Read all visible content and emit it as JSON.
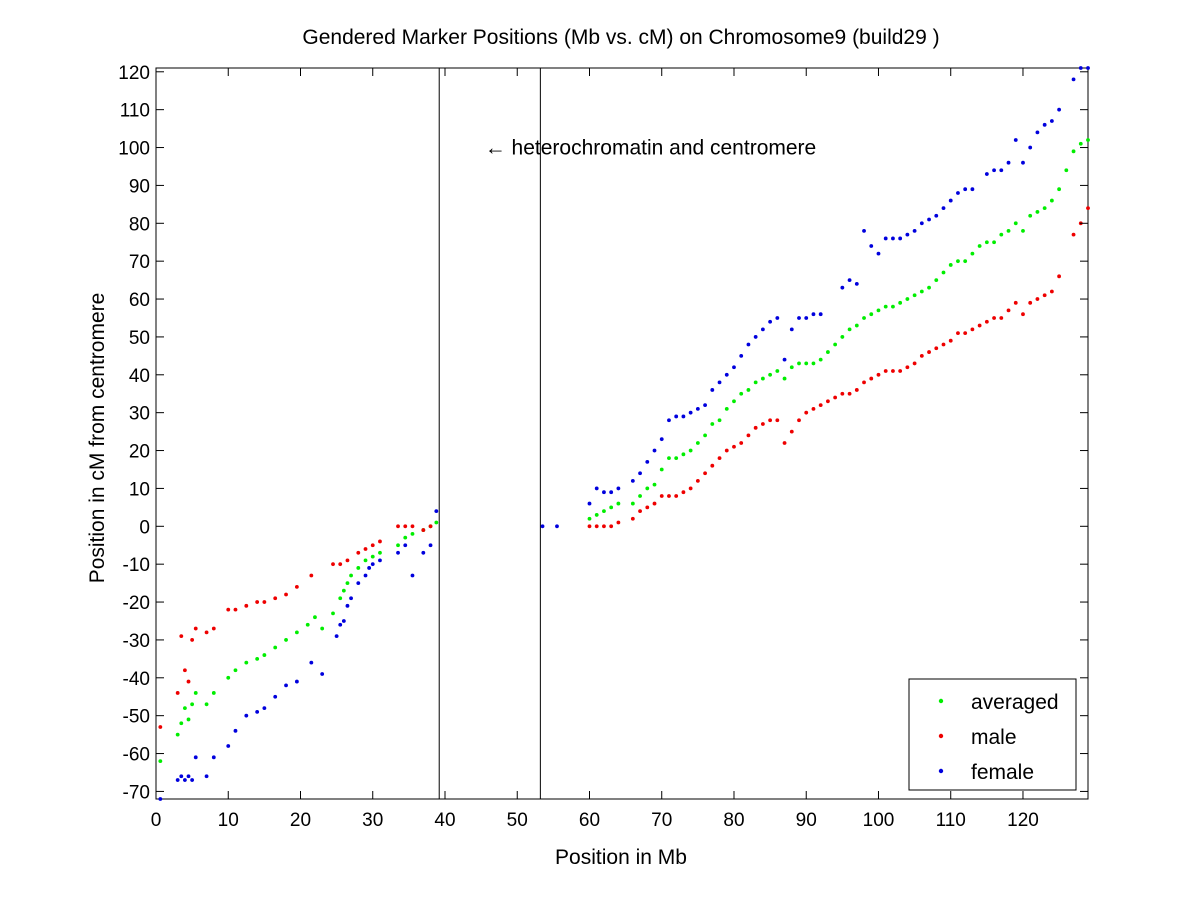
{
  "chart_data": {
    "type": "scatter",
    "title": "Gendered Marker Positions (Mb vs. cM) on Chromosome9 (build29 )",
    "xlabel": "Position in Mb",
    "ylabel": "Position in cM from centromere",
    "xlim": [
      0,
      129
    ],
    "ylim": [
      -72,
      121
    ],
    "xticks": [
      0,
      10,
      20,
      30,
      40,
      50,
      60,
      70,
      80,
      90,
      100,
      110,
      120
    ],
    "yticks": [
      -70,
      -60,
      -50,
      -40,
      -30,
      -20,
      -10,
      0,
      10,
      20,
      30,
      40,
      50,
      60,
      70,
      80,
      90,
      100,
      110,
      120
    ],
    "grid": false,
    "legend_position": "bottom-right",
    "vertical_lines": [
      39.2,
      53.2
    ],
    "annotation": {
      "text": "← heterochromatin and centromere",
      "x": 45.5,
      "y": 100
    },
    "series": [
      {
        "name": "averaged",
        "color": "#00ee00",
        "points": [
          [
            0.6,
            -62
          ],
          [
            3,
            -55
          ],
          [
            3.5,
            -52
          ],
          [
            4,
            -48
          ],
          [
            4.5,
            -51
          ],
          [
            5,
            -47
          ],
          [
            5.5,
            -44
          ],
          [
            7,
            -47
          ],
          [
            8,
            -44
          ],
          [
            10,
            -40
          ],
          [
            11,
            -38
          ],
          [
            12.5,
            -36
          ],
          [
            14,
            -35
          ],
          [
            15,
            -34
          ],
          [
            16.5,
            -32
          ],
          [
            18,
            -30
          ],
          [
            19.5,
            -28
          ],
          [
            21,
            -26
          ],
          [
            22,
            -24
          ],
          [
            23,
            -27
          ],
          [
            24.5,
            -23
          ],
          [
            25.5,
            -19
          ],
          [
            26,
            -17
          ],
          [
            26.5,
            -15
          ],
          [
            27,
            -13
          ],
          [
            28,
            -11
          ],
          [
            29,
            -9
          ],
          [
            30,
            -8
          ],
          [
            31,
            -7
          ],
          [
            33.5,
            -5
          ],
          [
            34.5,
            -3
          ],
          [
            35.5,
            -2
          ],
          [
            37,
            -1
          ],
          [
            38,
            0
          ],
          [
            38.8,
            1
          ],
          [
            60,
            2
          ],
          [
            61,
            3
          ],
          [
            62,
            4
          ],
          [
            63,
            5
          ],
          [
            64,
            6
          ],
          [
            66,
            6
          ],
          [
            67,
            8
          ],
          [
            68,
            10
          ],
          [
            69,
            11
          ],
          [
            70,
            15
          ],
          [
            71,
            18
          ],
          [
            72,
            18
          ],
          [
            73,
            19
          ],
          [
            74,
            20
          ],
          [
            75,
            22
          ],
          [
            76,
            24
          ],
          [
            77,
            27
          ],
          [
            78,
            28
          ],
          [
            79,
            31
          ],
          [
            80,
            33
          ],
          [
            81,
            35
          ],
          [
            82,
            36
          ],
          [
            83,
            38
          ],
          [
            84,
            39
          ],
          [
            85,
            40
          ],
          [
            86,
            41
          ],
          [
            87,
            39
          ],
          [
            88,
            42
          ],
          [
            89,
            43
          ],
          [
            90,
            43
          ],
          [
            91,
            43
          ],
          [
            92,
            44
          ],
          [
            93,
            46
          ],
          [
            94,
            48
          ],
          [
            95,
            50
          ],
          [
            96,
            52
          ],
          [
            97,
            53
          ],
          [
            98,
            55
          ],
          [
            99,
            56
          ],
          [
            100,
            57
          ],
          [
            101,
            58
          ],
          [
            102,
            58
          ],
          [
            103,
            59
          ],
          [
            104,
            60
          ],
          [
            105,
            61
          ],
          [
            106,
            62
          ],
          [
            107,
            63
          ],
          [
            108,
            65
          ],
          [
            109,
            67
          ],
          [
            110,
            69
          ],
          [
            111,
            70
          ],
          [
            112,
            70
          ],
          [
            113,
            72
          ],
          [
            114,
            74
          ],
          [
            115,
            75
          ],
          [
            116,
            75
          ],
          [
            117,
            77
          ],
          [
            118,
            78
          ],
          [
            119,
            80
          ],
          [
            120,
            78
          ],
          [
            121,
            82
          ],
          [
            122,
            83
          ],
          [
            123,
            84
          ],
          [
            124,
            86
          ],
          [
            125,
            89
          ],
          [
            126,
            94
          ],
          [
            127,
            99
          ],
          [
            128,
            101
          ],
          [
            129,
            102
          ]
        ]
      },
      {
        "name": "male",
        "color": "#ee0000",
        "points": [
          [
            0.6,
            -53
          ],
          [
            3,
            -44
          ],
          [
            3.5,
            -29
          ],
          [
            4,
            -38
          ],
          [
            4.5,
            -41
          ],
          [
            5,
            -30
          ],
          [
            5.5,
            -27
          ],
          [
            7,
            -28
          ],
          [
            8,
            -27
          ],
          [
            10,
            -22
          ],
          [
            11,
            -22
          ],
          [
            12.5,
            -21
          ],
          [
            14,
            -20
          ],
          [
            15,
            -20
          ],
          [
            16.5,
            -19
          ],
          [
            18,
            -18
          ],
          [
            19.5,
            -16
          ],
          [
            21.5,
            -13
          ],
          [
            24.5,
            -10
          ],
          [
            25.5,
            -10
          ],
          [
            26.5,
            -9
          ],
          [
            28,
            -7
          ],
          [
            29,
            -6
          ],
          [
            30,
            -5
          ],
          [
            31,
            -4
          ],
          [
            33.5,
            0
          ],
          [
            34.5,
            0
          ],
          [
            35.5,
            0
          ],
          [
            37,
            -1
          ],
          [
            38,
            0
          ],
          [
            60,
            0
          ],
          [
            61,
            0
          ],
          [
            62,
            0
          ],
          [
            63,
            0
          ],
          [
            64,
            1
          ],
          [
            66,
            2
          ],
          [
            67,
            4
          ],
          [
            68,
            5
          ],
          [
            69,
            6
          ],
          [
            70,
            8
          ],
          [
            71,
            8
          ],
          [
            72,
            8
          ],
          [
            73,
            9
          ],
          [
            74,
            10
          ],
          [
            75,
            12
          ],
          [
            76,
            14
          ],
          [
            77,
            16
          ],
          [
            78,
            18
          ],
          [
            79,
            20
          ],
          [
            80,
            21
          ],
          [
            81,
            22
          ],
          [
            82,
            24
          ],
          [
            83,
            26
          ],
          [
            84,
            27
          ],
          [
            85,
            28
          ],
          [
            86,
            28
          ],
          [
            87,
            22
          ],
          [
            88,
            25
          ],
          [
            89,
            28
          ],
          [
            90,
            30
          ],
          [
            91,
            31
          ],
          [
            92,
            32
          ],
          [
            93,
            33
          ],
          [
            94,
            34
          ],
          [
            95,
            35
          ],
          [
            96,
            35
          ],
          [
            97,
            36
          ],
          [
            98,
            38
          ],
          [
            99,
            39
          ],
          [
            100,
            40
          ],
          [
            101,
            41
          ],
          [
            102,
            41
          ],
          [
            103,
            41
          ],
          [
            104,
            42
          ],
          [
            105,
            43
          ],
          [
            106,
            45
          ],
          [
            107,
            46
          ],
          [
            108,
            47
          ],
          [
            109,
            48
          ],
          [
            110,
            49
          ],
          [
            111,
            51
          ],
          [
            112,
            51
          ],
          [
            113,
            52
          ],
          [
            114,
            53
          ],
          [
            115,
            54
          ],
          [
            116,
            55
          ],
          [
            117,
            55
          ],
          [
            118,
            57
          ],
          [
            119,
            59
          ],
          [
            120,
            56
          ],
          [
            121,
            59
          ],
          [
            122,
            60
          ],
          [
            123,
            61
          ],
          [
            124,
            62
          ],
          [
            125,
            66
          ],
          [
            127,
            77
          ],
          [
            128,
            80
          ],
          [
            129,
            84
          ]
        ]
      },
      {
        "name": "female",
        "color": "#0000dd",
        "points": [
          [
            0.6,
            -72
          ],
          [
            3,
            -67
          ],
          [
            3.5,
            -66
          ],
          [
            4,
            -67
          ],
          [
            4.5,
            -66
          ],
          [
            5,
            -67
          ],
          [
            5.5,
            -61
          ],
          [
            7,
            -66
          ],
          [
            8,
            -61
          ],
          [
            10,
            -58
          ],
          [
            11,
            -54
          ],
          [
            12.5,
            -50
          ],
          [
            14,
            -49
          ],
          [
            15,
            -48
          ],
          [
            16.5,
            -45
          ],
          [
            18,
            -42
          ],
          [
            19.5,
            -41
          ],
          [
            21.5,
            -36
          ],
          [
            23,
            -39
          ],
          [
            25,
            -29
          ],
          [
            25.5,
            -26
          ],
          [
            26,
            -25
          ],
          [
            26.5,
            -21
          ],
          [
            27,
            -19
          ],
          [
            28,
            -15
          ],
          [
            29,
            -13
          ],
          [
            29.5,
            -11
          ],
          [
            30,
            -10
          ],
          [
            31,
            -9
          ],
          [
            33.5,
            -7
          ],
          [
            34.5,
            -5
          ],
          [
            35.5,
            -13
          ],
          [
            37,
            -7
          ],
          [
            38,
            -5
          ],
          [
            38.8,
            4
          ],
          [
            53.5,
            0
          ],
          [
            55.5,
            0
          ],
          [
            60,
            6
          ],
          [
            61,
            10
          ],
          [
            62,
            9
          ],
          [
            63,
            9
          ],
          [
            64,
            10
          ],
          [
            66,
            12
          ],
          [
            67,
            14
          ],
          [
            68,
            17
          ],
          [
            69,
            20
          ],
          [
            70,
            23
          ],
          [
            71,
            28
          ],
          [
            72,
            29
          ],
          [
            73,
            29
          ],
          [
            74,
            30
          ],
          [
            75,
            31
          ],
          [
            76,
            32
          ],
          [
            77,
            36
          ],
          [
            78,
            38
          ],
          [
            79,
            40
          ],
          [
            80,
            42
          ],
          [
            81,
            45
          ],
          [
            82,
            48
          ],
          [
            83,
            50
          ],
          [
            84,
            52
          ],
          [
            85,
            54
          ],
          [
            86,
            55
          ],
          [
            87,
            44
          ],
          [
            88,
            52
          ],
          [
            89,
            55
          ],
          [
            90,
            55
          ],
          [
            91,
            56
          ],
          [
            92,
            56
          ],
          [
            95,
            63
          ],
          [
            96,
            65
          ],
          [
            97,
            64
          ],
          [
            98,
            78
          ],
          [
            99,
            74
          ],
          [
            100,
            72
          ],
          [
            101,
            76
          ],
          [
            102,
            76
          ],
          [
            103,
            76
          ],
          [
            104,
            77
          ],
          [
            105,
            78
          ],
          [
            106,
            80
          ],
          [
            107,
            81
          ],
          [
            108,
            82
          ],
          [
            109,
            84
          ],
          [
            110,
            86
          ],
          [
            111,
            88
          ],
          [
            112,
            89
          ],
          [
            113,
            89
          ],
          [
            115,
            93
          ],
          [
            116,
            94
          ],
          [
            117,
            94
          ],
          [
            118,
            96
          ],
          [
            119,
            102
          ],
          [
            120,
            96
          ],
          [
            121,
            100
          ],
          [
            122,
            104
          ],
          [
            123,
            106
          ],
          [
            124,
            107
          ],
          [
            125,
            110
          ],
          [
            127,
            118
          ],
          [
            128,
            121
          ],
          [
            129,
            121
          ]
        ]
      }
    ]
  }
}
